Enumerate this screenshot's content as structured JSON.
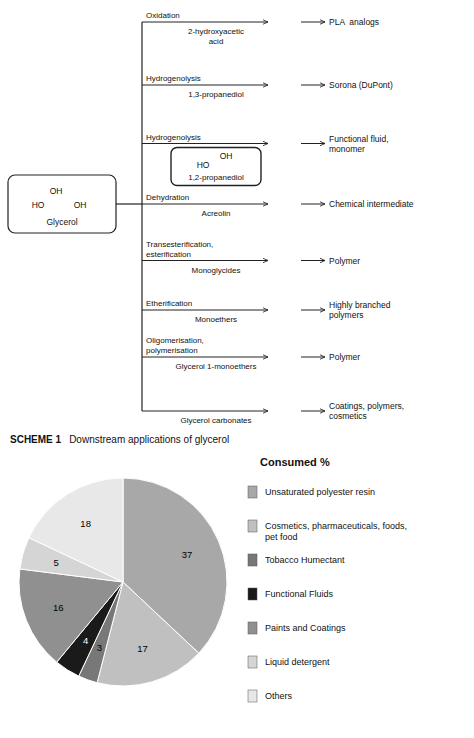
{
  "chart_data": {
    "type": "pie",
    "title": "SCHEME 1",
    "subtitle": "Downstream applications of glycerol",
    "legend_title": "Consumed %",
    "categories": [
      "Unsaturated polyester resin",
      "Cosmetics, pharmaceuticals, foods,\npet food",
      "Tobacco Humectant",
      "Functional Fluids",
      "Paints and Coatings",
      "Liquid detergent",
      "Others"
    ],
    "values": [
      37,
      17,
      3,
      4,
      16,
      5,
      18
    ],
    "colors": [
      "#a8a8a8",
      "#c0c0c0",
      "#787878",
      "#1a1a1a",
      "#909090",
      "#d5d5d5",
      "#e8e8e8"
    ],
    "data_labels": true,
    "legend": "right",
    "annotations": {
      "glycerol": [
        "OH",
        "HO",
        "OH",
        "Glycerol"
      ],
      "rows": [
        {
          "reaction": "Oxidation",
          "product": "2-hydroxyacetic\nacid",
          "result": "PLA  analogs"
        },
        {
          "reaction": "Hydrogenolysis",
          "product": "1,3-propanediol",
          "result": "Sorona (DuPont)"
        },
        {
          "reaction": "Hydrogenolysis",
          "product": "1,2-propanediol",
          "result": "Functional fluid,\nmonomer",
          "structure": [
            "OH",
            "HO"
          ]
        },
        {
          "reaction": "Dehydration",
          "product": "Acreolin",
          "result": "Chemical intermediate"
        },
        {
          "reaction": "Transesterification,\nesterification",
          "product": "Monoglycides",
          "result": "Polymer"
        },
        {
          "reaction": "Etherification",
          "product": "Monoethers",
          "result": "Highly branched\npolymers"
        },
        {
          "reaction": "Oligomerisation,\npolymerisation",
          "product": "Glycerol 1-monoethers",
          "result": "Polymer"
        },
        {
          "product": "Glycerol carbonates",
          "result": "Coatings, polymers,\ncosmetics"
        }
      ]
    }
  }
}
